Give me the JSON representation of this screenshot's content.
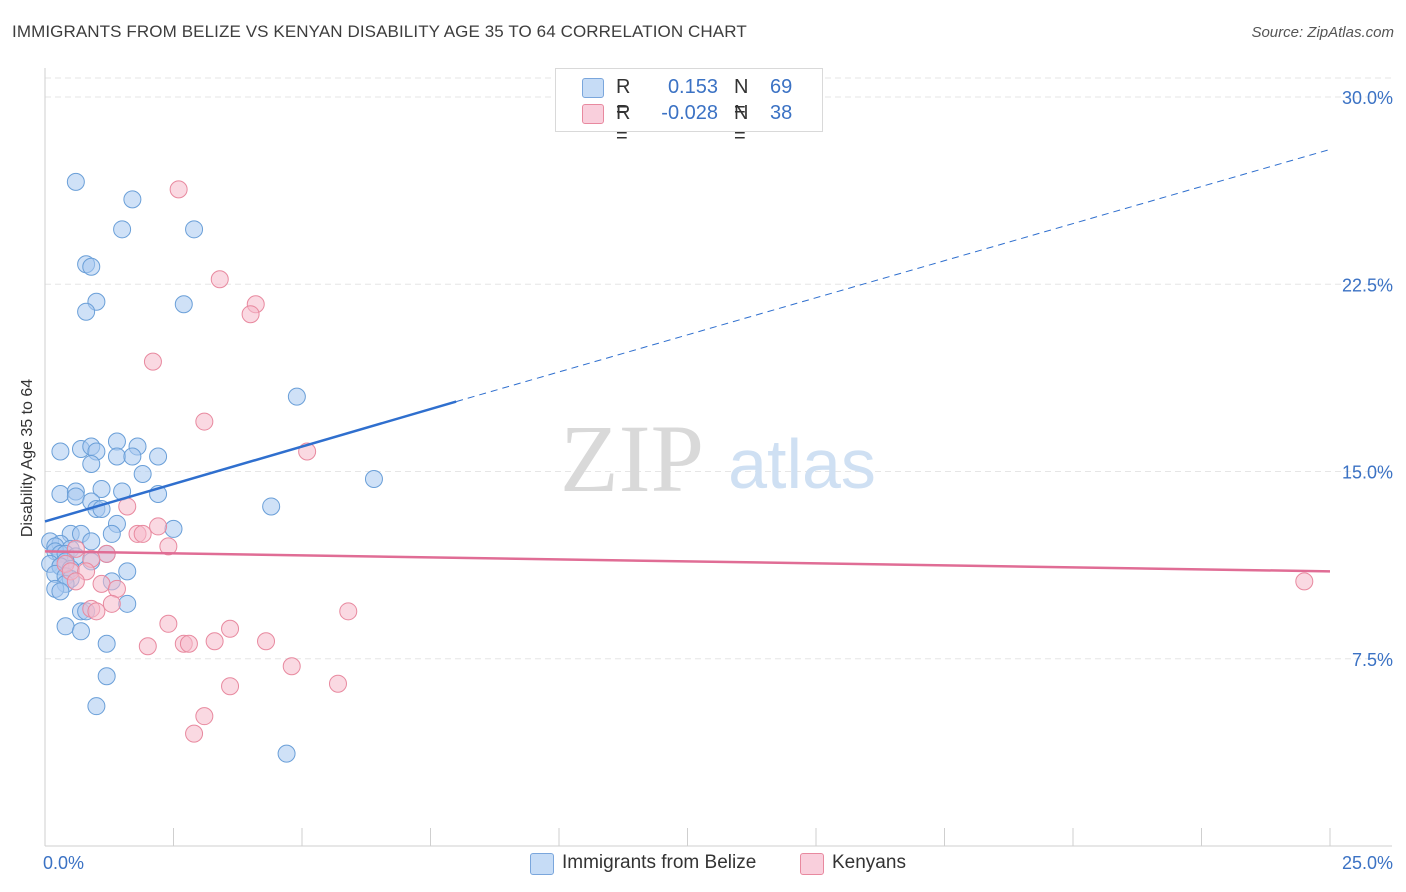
{
  "header": {
    "title": "IMMIGRANTS FROM BELIZE VS KENYAN DISABILITY AGE 35 TO 64 CORRELATION CHART",
    "source": "Source: ZipAtlas.com"
  },
  "watermark": {
    "zip": "ZIP",
    "atlas": "atlas"
  },
  "colors": {
    "blue_fill": "#a8c8f0",
    "blue_stroke": "#6a9fd8",
    "blue_line": "#2f6fce",
    "pink_fill": "#f5b9cb",
    "pink_stroke": "#e8899f",
    "pink_line": "#e06d95",
    "axis_text": "#3b72c4",
    "grid": "#e6e6e6"
  },
  "legend": {
    "rows": [
      {
        "r_label": "R =",
        "r_value": "0.153",
        "n_label": "N =",
        "n_value": "69"
      },
      {
        "r_label": "R =",
        "r_value": "-0.028",
        "n_label": "N =",
        "n_value": "38"
      }
    ]
  },
  "chart_data": {
    "type": "scatter",
    "title": "IMMIGRANTS FROM BELIZE VS KENYAN DISABILITY AGE 35 TO 64 CORRELATION CHART",
    "xlabel": "",
    "ylabel": "Disability Age 35 to 64",
    "xlim": [
      0,
      25
    ],
    "ylim": [
      0,
      30
    ],
    "x_tick_labels": [
      "0.0%",
      "25.0%"
    ],
    "y_tick_values": [
      7.5,
      15.0,
      22.5,
      30.0
    ],
    "y_tick_labels": [
      "7.5%",
      "15.0%",
      "22.5%",
      "30.0%"
    ],
    "grid": true,
    "series": [
      {
        "name": "Immigrants from Belize",
        "color": "#a8c8f0",
        "points": [
          [
            0.6,
            26.6
          ],
          [
            1.7,
            25.9
          ],
          [
            1.5,
            24.7
          ],
          [
            2.9,
            24.7
          ],
          [
            0.8,
            23.3
          ],
          [
            0.9,
            23.2
          ],
          [
            1.0,
            21.8
          ],
          [
            0.8,
            21.4
          ],
          [
            2.7,
            21.7
          ],
          [
            4.9,
            18.0
          ],
          [
            0.3,
            15.8
          ],
          [
            0.7,
            15.9
          ],
          [
            0.9,
            16.0
          ],
          [
            1.4,
            16.2
          ],
          [
            1.8,
            16.0
          ],
          [
            1.0,
            15.8
          ],
          [
            1.4,
            15.6
          ],
          [
            1.7,
            15.6
          ],
          [
            2.2,
            15.6
          ],
          [
            0.9,
            15.3
          ],
          [
            1.9,
            14.9
          ],
          [
            6.4,
            14.7
          ],
          [
            0.3,
            14.1
          ],
          [
            0.6,
            14.2
          ],
          [
            0.6,
            14.0
          ],
          [
            1.1,
            14.3
          ],
          [
            1.5,
            14.2
          ],
          [
            2.2,
            14.1
          ],
          [
            0.9,
            13.8
          ],
          [
            1.0,
            13.5
          ],
          [
            1.1,
            13.5
          ],
          [
            4.4,
            13.6
          ],
          [
            1.4,
            12.9
          ],
          [
            2.5,
            12.7
          ],
          [
            0.5,
            12.5
          ],
          [
            0.7,
            12.5
          ],
          [
            1.3,
            12.5
          ],
          [
            0.1,
            12.2
          ],
          [
            0.3,
            12.1
          ],
          [
            0.2,
            12.0
          ],
          [
            0.9,
            12.2
          ],
          [
            0.5,
            11.9
          ],
          [
            0.2,
            11.8
          ],
          [
            0.3,
            11.7
          ],
          [
            0.4,
            11.7
          ],
          [
            1.2,
            11.7
          ],
          [
            0.6,
            11.6
          ],
          [
            0.4,
            11.4
          ],
          [
            0.1,
            11.3
          ],
          [
            0.3,
            11.2
          ],
          [
            0.9,
            11.4
          ],
          [
            0.3,
            11.2
          ],
          [
            0.5,
            11.1
          ],
          [
            0.2,
            10.9
          ],
          [
            0.4,
            10.8
          ],
          [
            0.5,
            10.7
          ],
          [
            1.6,
            11.0
          ],
          [
            0.4,
            10.5
          ],
          [
            0.2,
            10.3
          ],
          [
            0.3,
            10.2
          ],
          [
            1.3,
            10.6
          ],
          [
            1.6,
            9.7
          ],
          [
            0.7,
            9.4
          ],
          [
            0.8,
            9.4
          ],
          [
            0.4,
            8.8
          ],
          [
            0.7,
            8.6
          ],
          [
            1.2,
            8.1
          ],
          [
            1.2,
            6.8
          ],
          [
            1.0,
            5.6
          ],
          [
            4.7,
            3.7
          ]
        ]
      },
      {
        "name": "Kenyans",
        "color": "#f5b9cb",
        "points": [
          [
            2.6,
            26.3
          ],
          [
            3.4,
            22.7
          ],
          [
            4.1,
            21.7
          ],
          [
            4.0,
            21.3
          ],
          [
            2.1,
            19.4
          ],
          [
            3.1,
            17.0
          ],
          [
            5.1,
            15.8
          ],
          [
            1.6,
            13.6
          ],
          [
            2.2,
            12.8
          ],
          [
            1.8,
            12.5
          ],
          [
            1.9,
            12.5
          ],
          [
            2.4,
            12.0
          ],
          [
            1.2,
            11.7
          ],
          [
            0.9,
            11.5
          ],
          [
            0.4,
            11.3
          ],
          [
            0.5,
            11.0
          ],
          [
            0.8,
            11.0
          ],
          [
            0.6,
            10.6
          ],
          [
            1.1,
            10.5
          ],
          [
            1.4,
            10.3
          ],
          [
            1.3,
            9.7
          ],
          [
            0.9,
            9.5
          ],
          [
            1.0,
            9.4
          ],
          [
            5.9,
            9.4
          ],
          [
            2.4,
            8.9
          ],
          [
            3.6,
            8.7
          ],
          [
            3.3,
            8.2
          ],
          [
            4.3,
            8.2
          ],
          [
            2.7,
            8.1
          ],
          [
            2.8,
            8.1
          ],
          [
            2.0,
            8.0
          ],
          [
            4.8,
            7.2
          ],
          [
            3.6,
            6.4
          ],
          [
            5.7,
            6.5
          ],
          [
            3.1,
            5.2
          ],
          [
            2.9,
            4.5
          ],
          [
            0.6,
            11.9
          ],
          [
            24.5,
            10.6
          ]
        ]
      }
    ],
    "trend_lines": [
      {
        "series": "Immigrants from Belize",
        "x": [
          0,
          8
        ],
        "y": [
          13.0,
          17.8
        ],
        "dashed_to": [
          25,
          27.9
        ]
      },
      {
        "series": "Kenyans",
        "x": [
          0,
          25
        ],
        "y": [
          11.8,
          11.0
        ]
      }
    ]
  },
  "bottom_legend": [
    {
      "label": "Immigrants from Belize"
    },
    {
      "label": "Kenyans"
    }
  ]
}
